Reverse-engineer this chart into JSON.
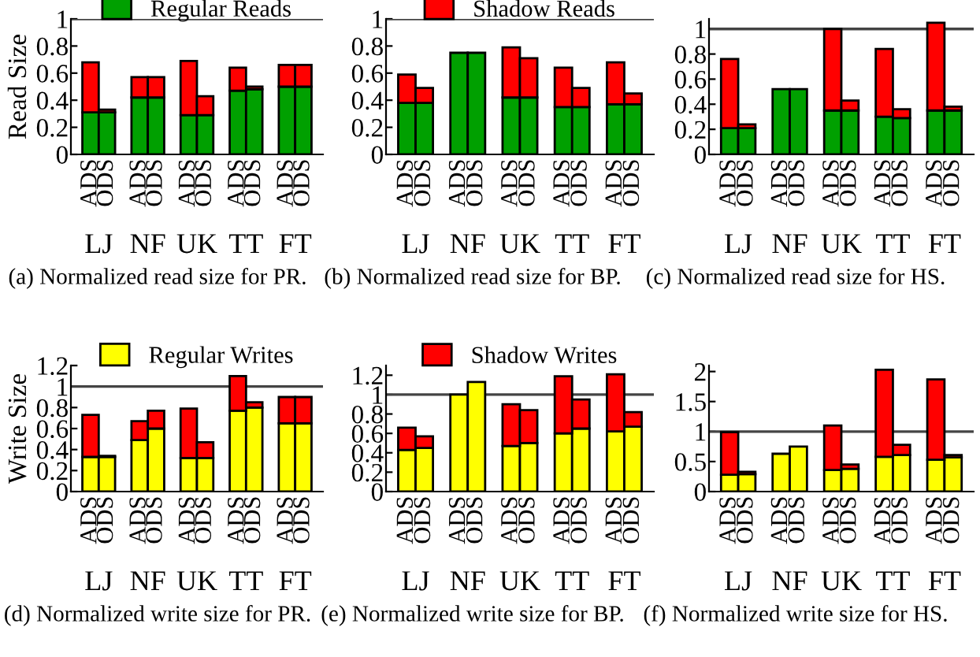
{
  "chart_data": [
    {
      "type": "bar",
      "stacked": true,
      "title": "(a) Normalized read size for PR.",
      "ylabel": "Read Size",
      "categories": [
        "ADS",
        "ODS",
        "ADS",
        "ODS",
        "ADS",
        "ODS",
        "ADS",
        "ODS",
        "ADS",
        "ODS"
      ],
      "annotations": [
        "LJ",
        "NF",
        "UK",
        "TT",
        "FT"
      ],
      "ylim": [
        0,
        1
      ],
      "yticks": [
        0,
        0.2,
        0.4,
        0.6,
        0.8,
        1
      ],
      "legend": "top",
      "ref_lines": [
        {
          "axis": "y",
          "value": 1
        }
      ],
      "series": [
        {
          "name": "Regular Reads",
          "color": "#00a000",
          "values": [
            0.31,
            0.31,
            0.42,
            0.42,
            0.29,
            0.29,
            0.47,
            0.48,
            0.5,
            0.5
          ]
        },
        {
          "color": "#ff0000",
          "values": [
            0.37,
            0.02,
            0.15,
            0.15,
            0.4,
            0.14,
            0.17,
            0.02,
            0.16,
            0.16
          ]
        }
      ]
    },
    {
      "type": "bar",
      "stacked": true,
      "title": "(b) Normalized read size for BP.",
      "categories": [
        "ADS",
        "ODS",
        "ADS",
        "ODS",
        "ADS",
        "ODS",
        "ADS",
        "ODS",
        "ADS",
        "ODS"
      ],
      "annotations": [
        "LJ",
        "NF",
        "UK",
        "TT",
        "FT"
      ],
      "ylim": [
        0,
        1
      ],
      "yticks": [
        0,
        0.2,
        0.4,
        0.6,
        0.8,
        1
      ],
      "legend": "top",
      "ref_lines": [
        {
          "axis": "y",
          "value": 1
        }
      ],
      "series": [
        {
          "color": "#00a000",
          "values": [
            0.38,
            0.38,
            0.75,
            0.75,
            0.42,
            0.42,
            0.35,
            0.35,
            0.37,
            0.37
          ]
        },
        {
          "name": "Shadow Reads",
          "color": "#ff0000",
          "values": [
            0.21,
            0.11,
            0,
            0,
            0.37,
            0.29,
            0.29,
            0.14,
            0.31,
            0.08
          ]
        }
      ]
    },
    {
      "type": "bar",
      "stacked": true,
      "title": "(c) Normalized read size for HS.",
      "categories": [
        "ADS",
        "ODS",
        "ADS",
        "ODS",
        "ADS",
        "ODS",
        "ADS",
        "ODS",
        "ADS",
        "ODS"
      ],
      "annotations": [
        "LJ",
        "NF",
        "UK",
        "TT",
        "FT"
      ],
      "ylim": [
        0,
        1.08
      ],
      "yticks": [
        0,
        0.2,
        0.4,
        0.6,
        0.8,
        1
      ],
      "ref_lines": [
        {
          "axis": "y",
          "value": 1
        }
      ],
      "series": [
        {
          "color": "#00a000",
          "values": [
            0.21,
            0.21,
            0.52,
            0.52,
            0.35,
            0.35,
            0.3,
            0.29,
            0.35,
            0.35
          ]
        },
        {
          "color": "#ff0000",
          "values": [
            0.55,
            0.03,
            0,
            0,
            0.65,
            0.08,
            0.54,
            0.07,
            0.7,
            0.03
          ]
        }
      ]
    },
    {
      "type": "bar",
      "stacked": true,
      "title": "(d) Normalized write size for PR.",
      "ylabel": "Write Size",
      "categories": [
        "ADS",
        "ODS",
        "ADS",
        "ODS",
        "ADS",
        "ODS",
        "ADS",
        "ODS",
        "ADS",
        "ODS"
      ],
      "annotations": [
        "LJ",
        "NF",
        "UK",
        "TT",
        "FT"
      ],
      "ylim": [
        0,
        1.2
      ],
      "yticks": [
        0,
        0.2,
        0.4,
        0.6,
        0.8,
        1,
        1.2
      ],
      "legend": "top",
      "ref_lines": [
        {
          "axis": "y",
          "value": 1
        }
      ],
      "series": [
        {
          "name": "Regular Writes",
          "color": "#ffff00",
          "values": [
            0.33,
            0.33,
            0.49,
            0.6,
            0.32,
            0.32,
            0.77,
            0.8,
            0.65,
            0.65
          ]
        },
        {
          "color": "#ff0000",
          "values": [
            0.4,
            0.01,
            0.18,
            0.17,
            0.47,
            0.15,
            0.33,
            0.05,
            0.25,
            0.25
          ]
        }
      ]
    },
    {
      "type": "bar",
      "stacked": true,
      "title": "(e) Normalized write size for BP.",
      "categories": [
        "ADS",
        "ODS",
        "ADS",
        "ODS",
        "ADS",
        "ODS",
        "ADS",
        "ODS",
        "ADS",
        "ODS"
      ],
      "annotations": [
        "LJ",
        "NF",
        "UK",
        "TT",
        "FT"
      ],
      "ylim": [
        0,
        1.3
      ],
      "yticks": [
        0,
        0.2,
        0.4,
        0.6,
        0.8,
        1,
        1.2
      ],
      "legend": "top",
      "ref_lines": [
        {
          "axis": "y",
          "value": 1
        }
      ],
      "series": [
        {
          "color": "#ffff00",
          "values": [
            0.43,
            0.45,
            1.0,
            1.13,
            0.47,
            0.5,
            0.6,
            0.65,
            0.62,
            0.67
          ]
        },
        {
          "name": "Shadow Writes",
          "color": "#ff0000",
          "values": [
            0.23,
            0.12,
            0,
            0,
            0.43,
            0.34,
            0.59,
            0.3,
            0.59,
            0.15
          ]
        }
      ]
    },
    {
      "type": "bar",
      "stacked": true,
      "title": "(f) Normalized write size for HS.",
      "categories": [
        "ADS",
        "ODS",
        "ADS",
        "ODS",
        "ADS",
        "ODS",
        "ADS",
        "ODS",
        "ADS",
        "ODS"
      ],
      "annotations": [
        "LJ",
        "NF",
        "UK",
        "TT",
        "FT"
      ],
      "ylim": [
        0,
        2.1
      ],
      "yticks": [
        0,
        0.5,
        1,
        1.5,
        2
      ],
      "ref_lines": [
        {
          "axis": "y",
          "value": 1
        }
      ],
      "series": [
        {
          "color": "#ffff00",
          "values": [
            0.28,
            0.29,
            0.63,
            0.75,
            0.36,
            0.38,
            0.58,
            0.61,
            0.53,
            0.57
          ]
        },
        {
          "color": "#ff0000",
          "values": [
            0.71,
            0.04,
            0,
            0,
            0.74,
            0.07,
            1.45,
            0.17,
            1.34,
            0.04
          ]
        }
      ]
    }
  ]
}
